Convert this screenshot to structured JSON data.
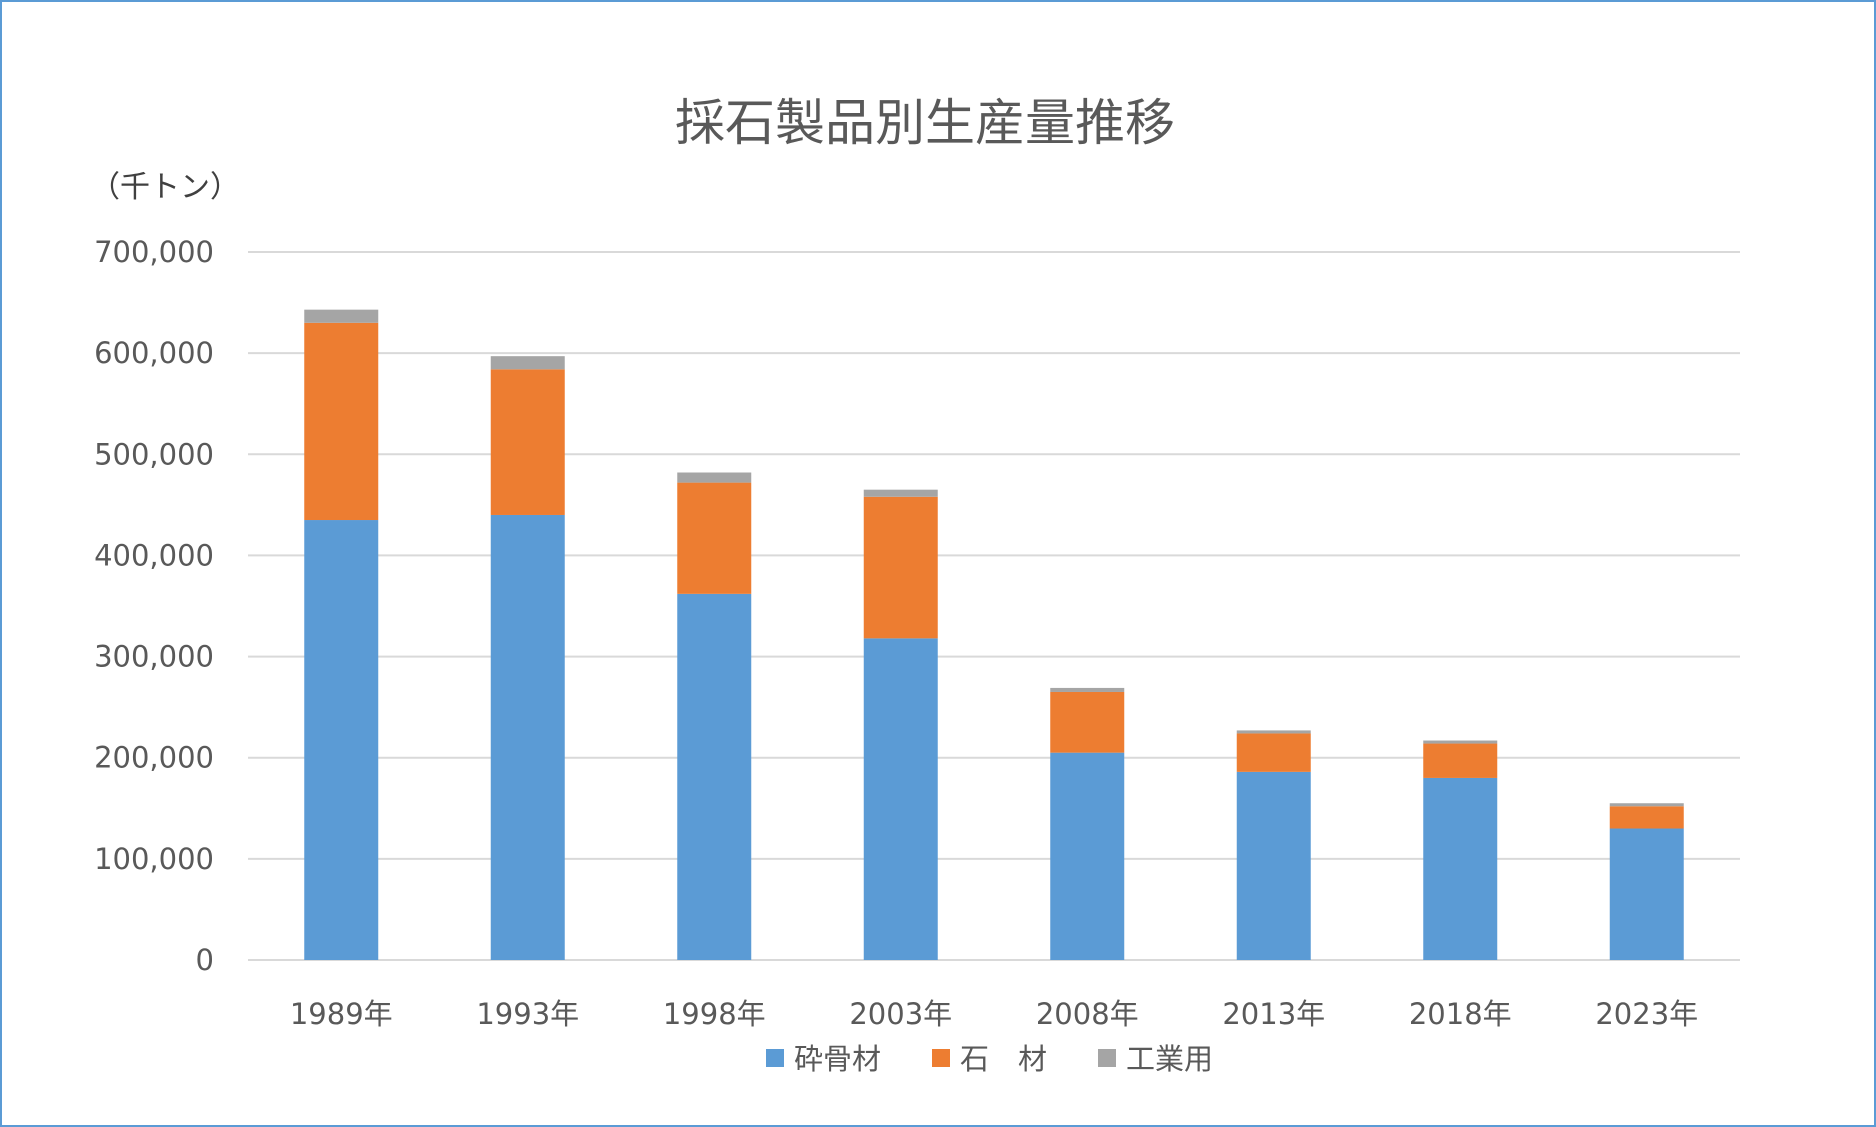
{
  "chart_data": {
    "type": "bar",
    "stacked": true,
    "title": "採石製品別生産量推移",
    "unit_label": "（千トン）",
    "xlabel": "",
    "ylabel": "",
    "ylim": [
      0,
      700000
    ],
    "yticks": [
      0,
      100000,
      200000,
      300000,
      400000,
      500000,
      600000,
      700000
    ],
    "ytick_labels": [
      "0",
      "100,000",
      "200,000",
      "300,000",
      "400,000",
      "500,000",
      "600,000",
      "700,000"
    ],
    "grid": true,
    "legend_position": "bottom",
    "categories": [
      "1989年",
      "1993年",
      "1998年",
      "2003年",
      "2008年",
      "2013年",
      "2018年",
      "2023年"
    ],
    "series": [
      {
        "name": "砕骨材",
        "color": "#5b9bd5",
        "values": [
          435000,
          440000,
          362000,
          318000,
          205000,
          186000,
          180000,
          130000
        ]
      },
      {
        "name": "石　材",
        "color": "#ed7d31",
        "values": [
          195000,
          144000,
          110000,
          140000,
          60000,
          38000,
          34000,
          22000
        ]
      },
      {
        "name": "工業用",
        "color": "#a5a5a5",
        "values": [
          13000,
          13000,
          10000,
          7000,
          4000,
          3000,
          3000,
          3000
        ]
      }
    ]
  }
}
